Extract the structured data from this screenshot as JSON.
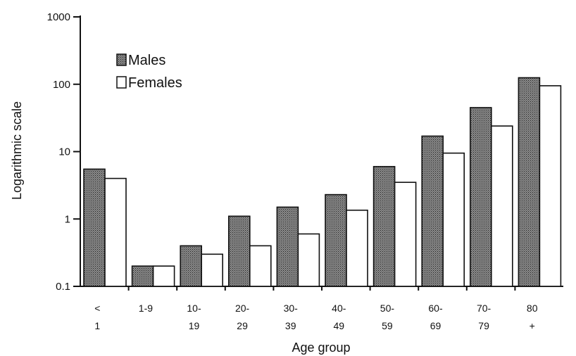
{
  "chart_data": {
    "type": "bar",
    "scale": "log",
    "ylim": [
      0.1,
      1000
    ],
    "yticks": [
      "1000",
      "100",
      "10",
      "1",
      "0.1"
    ],
    "ylabel": "Logarithmic scale",
    "xlabel": "Age group",
    "grid": false,
    "legend_position": "top-left",
    "categories": [
      {
        "line1": "<",
        "line2": "1"
      },
      {
        "line1": "1-9",
        "line2": ""
      },
      {
        "line1": "10-",
        "line2": "19"
      },
      {
        "line1": "20-",
        "line2": "29"
      },
      {
        "line1": "30-",
        "line2": "39"
      },
      {
        "line1": "40-",
        "line2": "49"
      },
      {
        "line1": "50-",
        "line2": "59"
      },
      {
        "line1": "60-",
        "line2": "69"
      },
      {
        "line1": "70-",
        "line2": "79"
      },
      {
        "line1": "80",
        "line2": "+"
      }
    ],
    "series": [
      {
        "name": "Males",
        "fill": "#6a6a6a",
        "values": [
          5.5,
          0.2,
          0.4,
          1.1,
          1.5,
          2.3,
          6,
          17,
          45,
          125
        ]
      },
      {
        "name": "Females",
        "fill": "#ffffff",
        "values": [
          4,
          0.2,
          0.3,
          0.4,
          0.6,
          1.35,
          3.5,
          9.5,
          24,
          95
        ]
      }
    ]
  }
}
